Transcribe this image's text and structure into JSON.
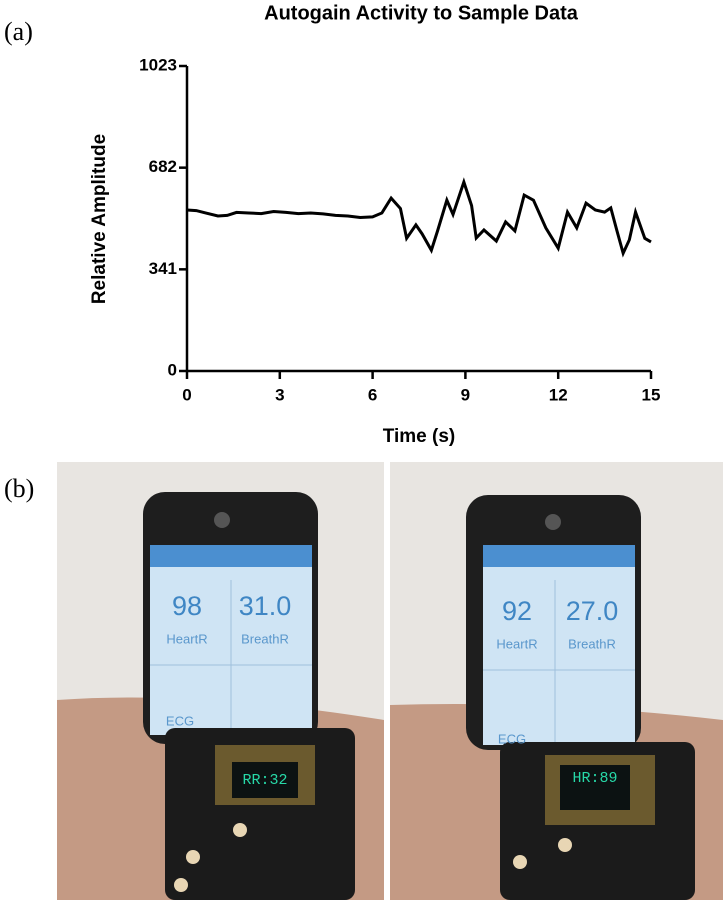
{
  "panel_labels": [
    "(a)",
    "(b)"
  ],
  "chart_data": {
    "type": "line",
    "title": "Autogain Activity to Sample Data",
    "x_label": "Time (s)",
    "y_label": "Relative Amplitude",
    "x": [
      0,
      0.3,
      0.6,
      1.0,
      1.3,
      1.6,
      2.0,
      2.4,
      2.8,
      3.2,
      3.6,
      4.0,
      4.4,
      4.8,
      5.2,
      5.6,
      6.0,
      6.3,
      6.6,
      6.9,
      7.1,
      7.4,
      7.6,
      7.9,
      8.1,
      8.4,
      8.6,
      8.95,
      9.2,
      9.35,
      9.6,
      10.0,
      10.3,
      10.6,
      10.9,
      11.2,
      11.6,
      12.0,
      12.3,
      12.6,
      12.9,
      13.2,
      13.5,
      13.7,
      13.9,
      14.1,
      14.3,
      14.5,
      14.8,
      15.0
    ],
    "series": [
      {
        "color": "#000000",
        "values": [
          540,
          538,
          530,
          520,
          522,
          532,
          530,
          528,
          535,
          532,
          528,
          530,
          527,
          522,
          520,
          515,
          517,
          530,
          580,
          545,
          445,
          490,
          460,
          405,
          470,
          573,
          525,
          634,
          555,
          446,
          473,
          436,
          500,
          470,
          590,
          573,
          480,
          412,
          533,
          480,
          563,
          540,
          533,
          547,
          470,
          395,
          440,
          533,
          445,
          433
        ]
      }
    ],
    "xlim": [
      0,
      15
    ],
    "xticks": [
      0,
      3,
      6,
      9,
      12,
      15
    ],
    "ylim": [
      0,
      1023
    ],
    "yticks": [
      0,
      341,
      682,
      1023
    ]
  },
  "photos": [
    {
      "heart_rate": "98",
      "breath_rate": "31.0",
      "heart_label": "HeartR",
      "breath_label": "BreathR",
      "ecg_label": "ECG",
      "watch_display": "RR:32"
    },
    {
      "heart_rate": "92",
      "breath_rate": "27.0",
      "heart_label": "HeartR",
      "breath_label": "BreathR",
      "ecg_label": "ECG",
      "watch_display": "HR:89"
    }
  ]
}
